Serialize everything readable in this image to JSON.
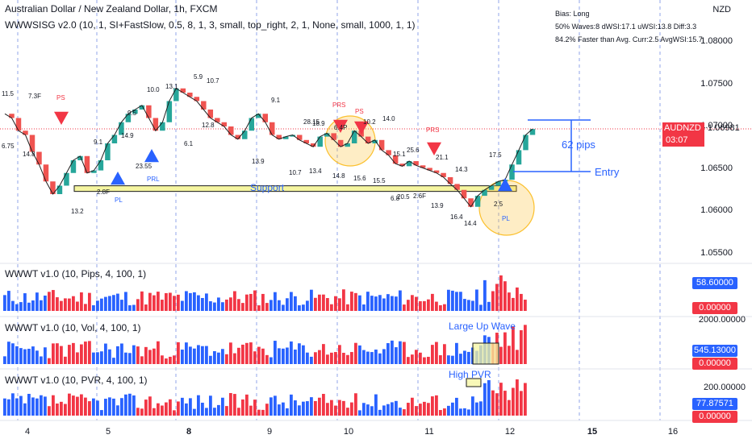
{
  "header": {
    "title": "Australian Dollar / New Zealand Dollar, 1h, FXCM",
    "indicator": "WWWSISG v2.0 (10, 1, SI+FastSlow, 0.5, 8, 1, 3, small, top_right, 2, 1, None, small, 1000, 1, 1)"
  },
  "info_box": {
    "line1": "Bias: Long",
    "line2": "50% Waves:8 dWSI:17.1 uWSI:13.8 Diff:3.3",
    "line3": "84.2% Faster than Avg. Curr:2.5 AvgWSI:15.7"
  },
  "currency": "NZD",
  "price_axis": [
    "1.08000",
    "1.07500",
    "1.07000",
    "1.06500",
    "1.06000",
    "1.05500"
  ],
  "symbol_tag": {
    "symbol": "AUDNZD",
    "price": "1.06981",
    "countdown": "03:07"
  },
  "annotations": {
    "pips": "62 pips",
    "entry": "Entry",
    "support": "Support",
    "large_up_wave": "Large Up Wave",
    "high_pvr": "High PVR"
  },
  "wave_labels": [
    "11.5",
    "6.75",
    "14.8",
    "7.3F",
    "PS",
    "13.2",
    "2.8F",
    "PL",
    "9.1",
    "9.5",
    "23.55",
    "PRL",
    "14.9",
    "10.0",
    "13.1",
    "6.1",
    "5.9",
    "10.7",
    "12.8",
    "9.1",
    "13.9",
    "10.7",
    "13.4",
    "28.15",
    "18.9",
    "PRS",
    "PS",
    "6.4P",
    "10.2",
    "14.8",
    "15.6",
    "14.0",
    "15.5",
    "15.1",
    "25.6",
    "6.8",
    "20.5",
    "2.6F",
    "14.3",
    "PRS",
    "21.1",
    "13.9",
    "16.4",
    "14.4",
    "17.5",
    "2.5",
    "PL"
  ],
  "panels": [
    {
      "title": "WWWT v1.0 (10, Pips, 4, 100, 1)",
      "value": "58.60000",
      "zero": "0.00000"
    },
    {
      "title": "WWWT v1.0 (10, Vol, 4, 100, 1)",
      "value": "545.13000",
      "zero": "0.00000",
      "top": "2000.00000"
    },
    {
      "title": "WWWT v1.0 (10, PVR, 4, 100, 1)",
      "value": "77.87571",
      "zero": "0.00000",
      "top": "200.00000"
    }
  ],
  "x_ticks": [
    {
      "label": "4",
      "bold": false
    },
    {
      "label": "5",
      "bold": false
    },
    {
      "label": "8",
      "bold": true
    },
    {
      "label": "9",
      "bold": false
    },
    {
      "label": "10",
      "bold": false
    },
    {
      "label": "11",
      "bold": false
    },
    {
      "label": "12",
      "bold": false
    },
    {
      "label": "15",
      "bold": true
    },
    {
      "label": "16",
      "bold": false
    }
  ],
  "colors": {
    "up": "#2962ff",
    "down": "#f23645",
    "support": "#f5f5a0",
    "highlight": "#fbc02d"
  },
  "chart_data": {
    "type": "line",
    "title": "Australian Dollar / New Zealand Dollar, 1h, FXCM",
    "series": [
      {
        "values": [
          1.0715,
          1.071,
          1.0695,
          1.069,
          1.067,
          1.0655,
          1.0635,
          1.062,
          1.063,
          1.0645,
          1.066,
          1.0665,
          1.0645,
          1.0648,
          1.066,
          1.068,
          1.069,
          1.0705,
          1.0715,
          1.072,
          1.0725,
          1.071,
          1.0695,
          1.0705,
          1.073,
          1.0745,
          1.074,
          1.0735,
          1.073,
          1.072,
          1.071,
          1.0705,
          1.07,
          1.069,
          1.0685,
          1.0695,
          1.071,
          1.0715,
          1.0705,
          1.069,
          1.0685,
          1.0688,
          1.069,
          1.0684,
          1.068,
          1.0676,
          1.0688,
          1.0692,
          1.0684,
          1.0676,
          1.068,
          1.0695,
          1.0688,
          1.068,
          1.0684,
          1.0672,
          1.0666,
          1.0656,
          1.0653,
          1.0659,
          1.0654,
          1.0651,
          1.0648,
          1.0645,
          1.064,
          1.0632,
          1.0625,
          1.0615,
          1.0605,
          1.0618,
          1.0625,
          1.063,
          1.0635,
          1.0637,
          1.0655,
          1.0672,
          1.069,
          1.0697
        ]
      }
    ],
    "support_level": 1.0627,
    "ylim": [
      1.0525,
      1.082
    ]
  }
}
